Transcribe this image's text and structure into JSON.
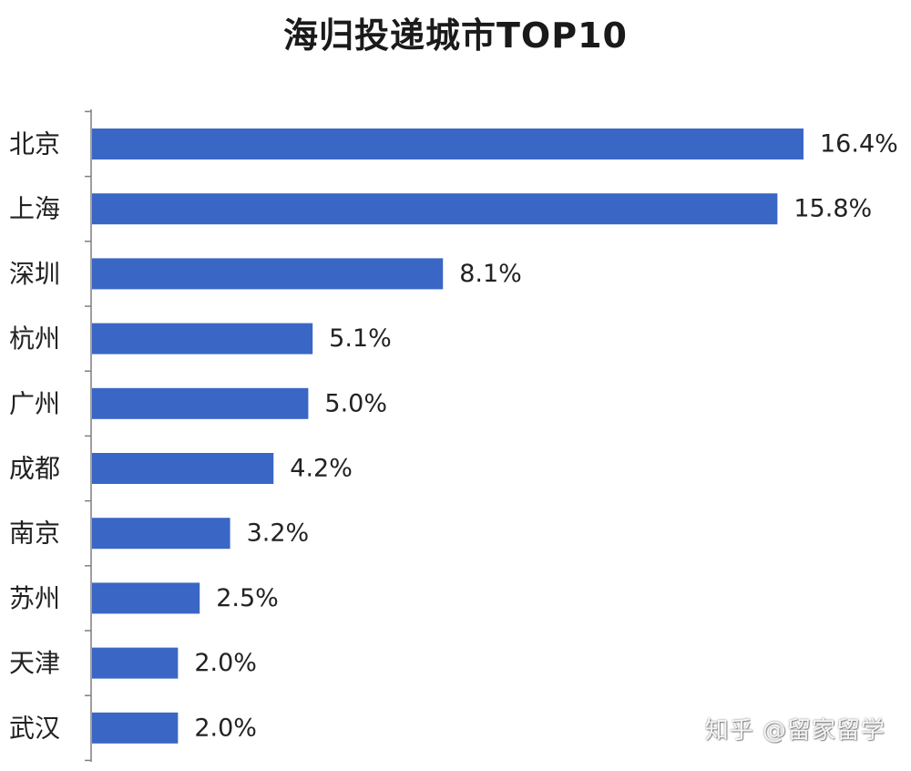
{
  "chart_data": {
    "type": "bar",
    "orientation": "horizontal",
    "title": "海归投递城市TOP10",
    "categories": [
      "北京",
      "上海",
      "深圳",
      "杭州",
      "广州",
      "成都",
      "南京",
      "苏州",
      "天津",
      "武汉"
    ],
    "values": [
      16.4,
      15.8,
      8.1,
      5.1,
      5.0,
      4.2,
      3.2,
      2.5,
      2.0,
      2.0
    ],
    "value_labels": [
      "16.4%",
      "15.8%",
      "8.1%",
      "5.1%",
      "5.0%",
      "4.2%",
      "3.2%",
      "2.5%",
      "2.0%",
      "2.0%"
    ],
    "xlim": [
      0,
      16.4
    ],
    "grid": false,
    "bar_color": "#3a67c5"
  },
  "watermark": "知乎 @留家留学"
}
